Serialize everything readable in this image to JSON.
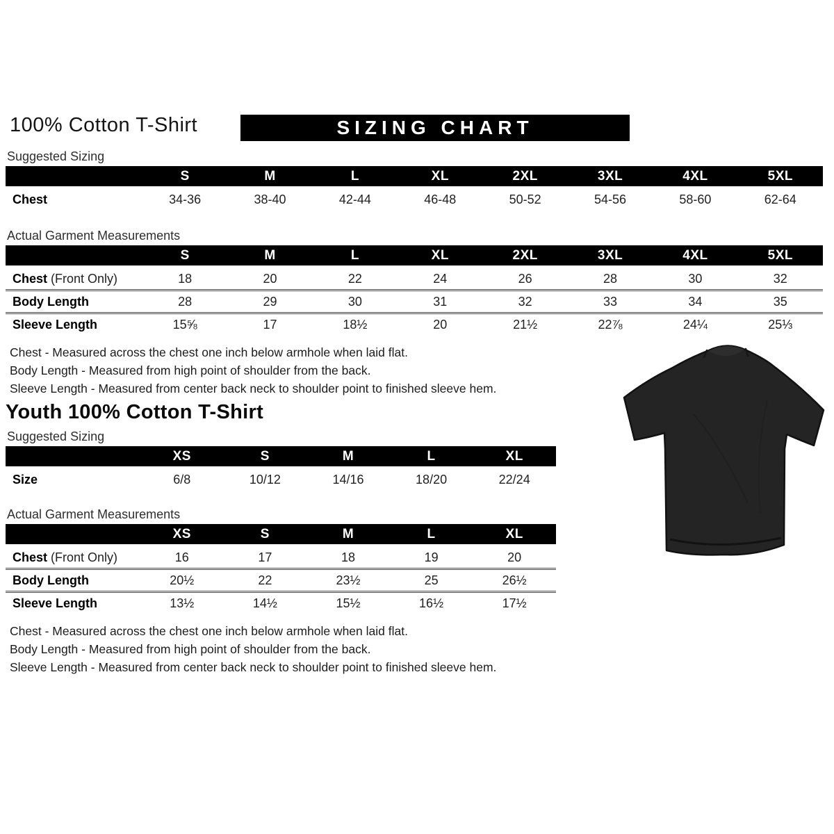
{
  "header": {
    "title": "100% Cotton T-Shirt",
    "banner": "SIZING CHART"
  },
  "adult": {
    "suggested_label": "Suggested Sizing",
    "suggested": {
      "columns": [
        "S",
        "M",
        "L",
        "XL",
        "2XL",
        "3XL",
        "4XL",
        "5XL"
      ],
      "rows": [
        {
          "label": "Chest",
          "suffix": "",
          "values": [
            "34-36",
            "38-40",
            "42-44",
            "46-48",
            "50-52",
            "54-56",
            "58-60",
            "62-64"
          ]
        }
      ]
    },
    "actual_label": "Actual Garment Measurements",
    "actual": {
      "columns": [
        "S",
        "M",
        "L",
        "XL",
        "2XL",
        "3XL",
        "4XL",
        "5XL"
      ],
      "rows": [
        {
          "label": "Chest",
          "suffix": " (Front Only)",
          "values": [
            "18",
            "20",
            "22",
            "24",
            "26",
            "28",
            "30",
            "32"
          ]
        },
        {
          "label": "Body Length",
          "suffix": "",
          "values": [
            "28",
            "29",
            "30",
            "31",
            "32",
            "33",
            "34",
            "35"
          ]
        },
        {
          "label": "Sleeve Length",
          "suffix": "",
          "values": [
            "15⅝",
            "17",
            "18½",
            "20",
            "21½",
            "22⅞",
            "24¼",
            "25⅓"
          ]
        }
      ]
    },
    "notes": [
      "Chest - Measured across the chest one inch below armhole when laid flat.",
      "Body Length - Measured from high point of shoulder from the back.",
      "Sleeve Length - Measured from center back neck to shoulder point to finished sleeve hem."
    ]
  },
  "youth": {
    "title": "Youth 100% Cotton T-Shirt",
    "suggested_label": "Suggested Sizing",
    "suggested": {
      "columns": [
        "XS",
        "S",
        "M",
        "L",
        "XL"
      ],
      "rows": [
        {
          "label": "Size",
          "suffix": "",
          "values": [
            "6/8",
            "10/12",
            "14/16",
            "18/20",
            "22/24"
          ]
        }
      ]
    },
    "actual_label": "Actual Garment Measurements",
    "actual": {
      "columns": [
        "XS",
        "S",
        "M",
        "L",
        "XL"
      ],
      "rows": [
        {
          "label": "Chest",
          "suffix": " (Front Only)",
          "values": [
            "16",
            "17",
            "18",
            "19",
            "20"
          ]
        },
        {
          "label": "Body Length",
          "suffix": "",
          "values": [
            "20½",
            "22",
            "23½",
            "25",
            "26½"
          ]
        },
        {
          "label": "Sleeve Length",
          "suffix": "",
          "values": [
            "13½",
            "14½",
            "15½",
            "16½",
            "17½"
          ]
        }
      ]
    },
    "notes": [
      "Chest - Measured across the chest one inch below armhole when laid flat.",
      "Body Length - Measured from high point of shoulder from the back.",
      "Sleeve Length - Measured from center back neck to shoulder point to finished sleeve hem."
    ]
  },
  "tshirt": {
    "alt": "black t-shirt",
    "body_color": "#242424",
    "collar_color": "#2d2d2d",
    "outline_color": "#111111"
  },
  "colors": {
    "banner_bg": "#000000",
    "banner_text": "#ffffff",
    "table_header_bg": "#000000",
    "table_header_text": "#ffffff"
  }
}
